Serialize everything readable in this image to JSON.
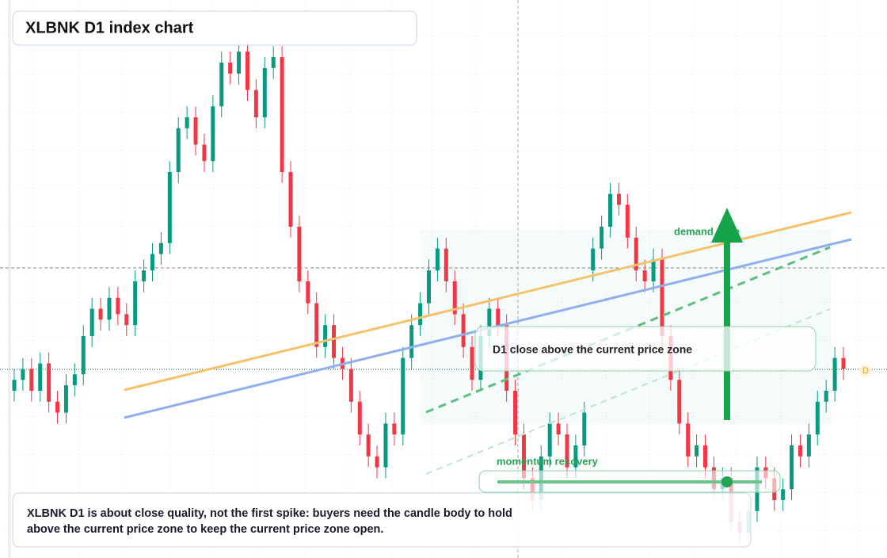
{
  "chart_data": {
    "type": "candlestick",
    "title": "XLBNK D1 index chart",
    "zone_label": "demand zone",
    "callout": "D1 close above the current price zone",
    "momentum_label": "momentum recovery",
    "note": "XLBNK D1 is about close quality, not the first spike: buyers need the candle body to hold above the current price zone to keep the current price zone open.",
    "badge": "D",
    "up_color": "#089981",
    "down_color": "#f23645",
    "ylim": [
      0,
      100
    ],
    "candles": [
      [
        30,
        34,
        28,
        32
      ],
      [
        32,
        36,
        30,
        34
      ],
      [
        34,
        36,
        28,
        30
      ],
      [
        30,
        37,
        28,
        35
      ],
      [
        35,
        37,
        26,
        28
      ],
      [
        28,
        30,
        24,
        26
      ],
      [
        26,
        33,
        24,
        31
      ],
      [
        31,
        35,
        29,
        33
      ],
      [
        33,
        42,
        31,
        40
      ],
      [
        40,
        47,
        38,
        45
      ],
      [
        45,
        47,
        41,
        43
      ],
      [
        43,
        49,
        41,
        47
      ],
      [
        47,
        49,
        42,
        44
      ],
      [
        44,
        46,
        40,
        42
      ],
      [
        42,
        52,
        40,
        50
      ],
      [
        50,
        54,
        48,
        52
      ],
      [
        52,
        57,
        50,
        55
      ],
      [
        55,
        59,
        53,
        57
      ],
      [
        57,
        72,
        55,
        70
      ],
      [
        70,
        80,
        68,
        78
      ],
      [
        78,
        82,
        76,
        80
      ],
      [
        80,
        82,
        73,
        75
      ],
      [
        75,
        77,
        70,
        72
      ],
      [
        72,
        84,
        70,
        82
      ],
      [
        82,
        92,
        80,
        90
      ],
      [
        90,
        92,
        86,
        88
      ],
      [
        88,
        94,
        86,
        92
      ],
      [
        92,
        94,
        83,
        85
      ],
      [
        85,
        87,
        78,
        80
      ],
      [
        80,
        91,
        78,
        89
      ],
      [
        89,
        93,
        87,
        91
      ],
      [
        91,
        93,
        68,
        70
      ],
      [
        70,
        72,
        58,
        60
      ],
      [
        60,
        62,
        48,
        50
      ],
      [
        50,
        52,
        44,
        46
      ],
      [
        46,
        48,
        36,
        38
      ],
      [
        38,
        44,
        36,
        42
      ],
      [
        42,
        44,
        34,
        36
      ],
      [
        36,
        38,
        32,
        34
      ],
      [
        34,
        36,
        26,
        28
      ],
      [
        28,
        30,
        20,
        22
      ],
      [
        22,
        24,
        16,
        18
      ],
      [
        18,
        20,
        14,
        16
      ],
      [
        16,
        26,
        14,
        24
      ],
      [
        24,
        26,
        20,
        22
      ],
      [
        22,
        38,
        20,
        36
      ],
      [
        36,
        44,
        34,
        42
      ],
      [
        42,
        48,
        40,
        46
      ],
      [
        46,
        54,
        44,
        52
      ],
      [
        52,
        58,
        50,
        56
      ],
      [
        56,
        58,
        48,
        50
      ],
      [
        50,
        52,
        42,
        44
      ],
      [
        44,
        46,
        36,
        38
      ],
      [
        38,
        40,
        30,
        32
      ],
      [
        32,
        42,
        30,
        40
      ],
      [
        40,
        47,
        38,
        45
      ],
      [
        45,
        47,
        40,
        42
      ],
      [
        42,
        44,
        28,
        30
      ],
      [
        30,
        32,
        20,
        22
      ],
      [
        22,
        24,
        12,
        14
      ],
      [
        14,
        16,
        8,
        10
      ],
      [
        10,
        20,
        8,
        18
      ],
      [
        18,
        26,
        16,
        24
      ],
      [
        24,
        26,
        20,
        22
      ],
      [
        22,
        24,
        14,
        16
      ],
      [
        16,
        22,
        14,
        20
      ],
      [
        20,
        28,
        18,
        26
      ],
      [
        52,
        58,
        50,
        56
      ],
      [
        56,
        62,
        54,
        60
      ],
      [
        60,
        68,
        58,
        66
      ],
      [
        66,
        68,
        62,
        64
      ],
      [
        64,
        66,
        56,
        58
      ],
      [
        58,
        60,
        50,
        52
      ],
      [
        52,
        54,
        48,
        50
      ],
      [
        50,
        56,
        48,
        54
      ],
      [
        54,
        56,
        38,
        40
      ],
      [
        40,
        42,
        30,
        32
      ],
      [
        32,
        34,
        22,
        24
      ],
      [
        24,
        26,
        16,
        18
      ],
      [
        18,
        22,
        16,
        20
      ],
      [
        20,
        22,
        14,
        16
      ],
      [
        16,
        18,
        10,
        12
      ],
      [
        12,
        16,
        10,
        14
      ],
      [
        14,
        16,
        4,
        6
      ],
      [
        6,
        8,
        2,
        4
      ],
      [
        4,
        10,
        2,
        8
      ],
      [
        8,
        18,
        6,
        16
      ],
      [
        16,
        18,
        12,
        14
      ],
      [
        14,
        16,
        8,
        10
      ],
      [
        10,
        14,
        8,
        12
      ],
      [
        12,
        22,
        10,
        20
      ],
      [
        20,
        22,
        16,
        18
      ],
      [
        18,
        24,
        16,
        22
      ],
      [
        22,
        30,
        20,
        28
      ],
      [
        28,
        32,
        26,
        30
      ],
      [
        30,
        38,
        28,
        36
      ],
      [
        36,
        38,
        32,
        34
      ]
    ]
  }
}
